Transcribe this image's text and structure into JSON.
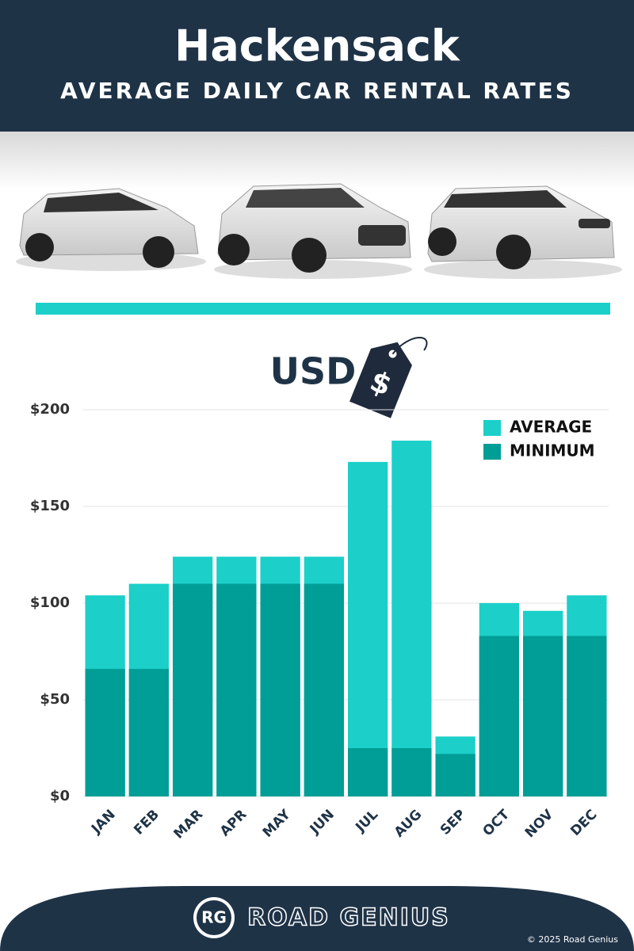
{
  "chart_data": {
    "type": "bar",
    "title": "Hackensack",
    "subtitle": "AVERAGE DAILY CAR RENTAL RATES",
    "unit_label": "USD",
    "tag_label": "$",
    "categories": [
      "JAN",
      "FEB",
      "MAR",
      "APR",
      "MAY",
      "JUN",
      "JUL",
      "AUG",
      "SEP",
      "OCT",
      "NOV",
      "DEC"
    ],
    "series": [
      {
        "name": "AVERAGE",
        "color": "#1ccfc9",
        "values": [
          104,
          110,
          124,
          124,
          124,
          124,
          173,
          184,
          31,
          100,
          96,
          104
        ]
      },
      {
        "name": "MINIMUM",
        "color": "#009e96",
        "values": [
          66,
          66,
          110,
          110,
          110,
          110,
          25,
          25,
          22,
          83,
          83,
          83
        ]
      }
    ],
    "ylim": [
      0,
      200
    ],
    "yticks": [
      {
        "value": 0,
        "label": "$0"
      },
      {
        "value": 50,
        "label": "$50"
      },
      {
        "value": 100,
        "label": "$100"
      },
      {
        "value": 150,
        "label": "$150"
      },
      {
        "value": 200,
        "label": "$200"
      }
    ],
    "grid": true,
    "legend": "top-right"
  },
  "footer": {
    "logo": "RG",
    "brand": "ROAD GENIUS",
    "copyright": "© 2025 Road Genius"
  }
}
